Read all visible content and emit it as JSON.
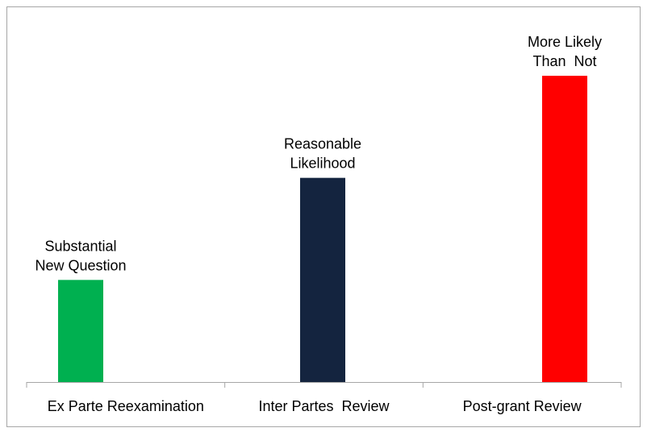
{
  "chart_data": {
    "type": "bar",
    "categories": [
      "Ex Parte Reexamination",
      "Inter Partes  Review",
      "Post-grant Review"
    ],
    "values": [
      1,
      2,
      3
    ],
    "colors": [
      "#00b050",
      "#14243f",
      "#ff0000"
    ],
    "bar_labels": [
      [
        "Substantial",
        "New Question"
      ],
      [
        "Reasonable",
        "Likelihood"
      ],
      [
        "More Likely",
        "Than  Not"
      ]
    ]
  }
}
